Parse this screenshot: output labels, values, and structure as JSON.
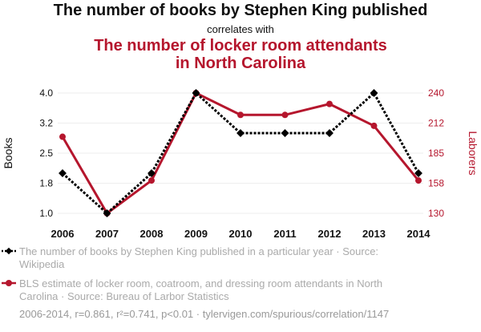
{
  "header": {
    "title": "The number of books by Stephen King published",
    "subtitle": "correlates with",
    "title2_line1": "The number of locker room attendants",
    "title2_line2": "in North Carolina"
  },
  "chart_data": {
    "type": "line",
    "categories": [
      "2006",
      "2007",
      "2008",
      "2009",
      "2010",
      "2011",
      "2012",
      "2013",
      "2014"
    ],
    "series": [
      {
        "name": "The number of books by Stephen King published",
        "axis": "left",
        "color": "#000000",
        "style": "dotted",
        "marker": "diamond",
        "values": [
          2,
          1,
          2,
          4,
          3,
          3,
          3,
          4,
          2
        ]
      },
      {
        "name": "BLS estimate of locker room, coatroom, and dressing room attendants in North Carolina",
        "axis": "right",
        "color": "#b5162d",
        "style": "solid",
        "marker": "circle",
        "values": [
          200,
          130,
          160,
          240,
          220,
          220,
          230,
          210,
          160
        ]
      }
    ],
    "yleft": {
      "label": "Books",
      "ticks": [
        "1.0",
        "1.8",
        "2.5",
        "3.2",
        "4.0"
      ],
      "lim": [
        1.0,
        4.0
      ]
    },
    "yright": {
      "label": "Laborers",
      "ticks": [
        "130",
        "158",
        "185",
        "212",
        "240"
      ],
      "lim": [
        130,
        240
      ]
    }
  },
  "legend": {
    "item1_line1": "The number of books by Stephen King published in a particular year · Source:",
    "item1_line2": "Wikipedia",
    "item2_line1": "BLS estimate of locker room, coatroom, and dressing room attendants in North",
    "item2_line2": "Carolina · Source: Bureau of Larbor Statistics"
  },
  "footer": "2006-2014, r=0.861, r²=0.741, p<0.01 · tylervigen.com/spurious/correlation/1147"
}
